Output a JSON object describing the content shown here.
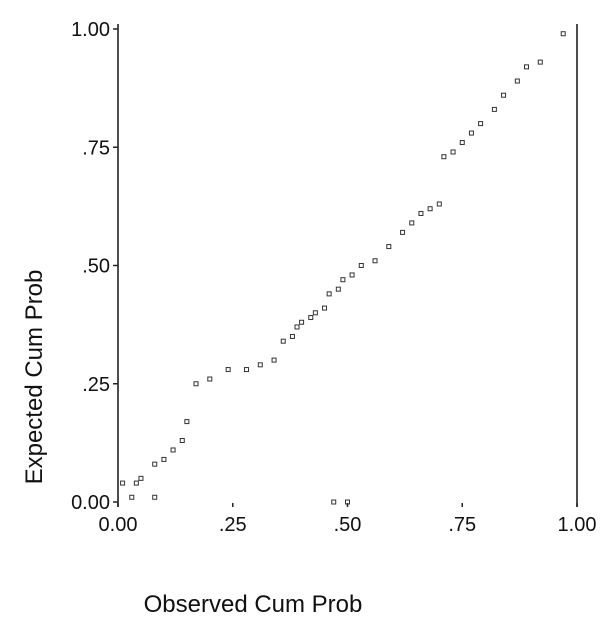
{
  "chart_data": {
    "type": "scatter",
    "title": "",
    "xlabel": "Observed Cum Prob",
    "ylabel": "Expected Cum Prob",
    "xlim": [
      0,
      1
    ],
    "ylim": [
      0,
      1
    ],
    "grid": false,
    "x_ticks": [
      {
        "value": 0,
        "label": "0.00"
      },
      {
        "value": 0.25,
        "label": ".25"
      },
      {
        "value": 0.5,
        "label": ".50"
      },
      {
        "value": 0.75,
        "label": ".75"
      },
      {
        "value": 1,
        "label": "1.00"
      }
    ],
    "y_ticks": [
      {
        "value": 0,
        "label": "0.00"
      },
      {
        "value": 0.25,
        "label": ".25"
      },
      {
        "value": 0.5,
        "label": ".50"
      },
      {
        "value": 0.75,
        "label": ".75"
      },
      {
        "value": 1,
        "label": "1.00"
      }
    ],
    "points": [
      {
        "x": 0.01,
        "y": 0.04
      },
      {
        "x": 0.04,
        "y": 0.04
      },
      {
        "x": 0.03,
        "y": 0.01
      },
      {
        "x": 0.08,
        "y": 0.01
      },
      {
        "x": 0.05,
        "y": 0.05
      },
      {
        "x": 0.08,
        "y": 0.08
      },
      {
        "x": 0.1,
        "y": 0.09
      },
      {
        "x": 0.12,
        "y": 0.11
      },
      {
        "x": 0.14,
        "y": 0.13
      },
      {
        "x": 0.15,
        "y": 0.17
      },
      {
        "x": 0.17,
        "y": 0.25
      },
      {
        "x": 0.2,
        "y": 0.26
      },
      {
        "x": 0.24,
        "y": 0.28
      },
      {
        "x": 0.28,
        "y": 0.28
      },
      {
        "x": 0.31,
        "y": 0.29
      },
      {
        "x": 0.34,
        "y": 0.3
      },
      {
        "x": 0.36,
        "y": 0.34
      },
      {
        "x": 0.38,
        "y": 0.35
      },
      {
        "x": 0.39,
        "y": 0.37
      },
      {
        "x": 0.4,
        "y": 0.38
      },
      {
        "x": 0.42,
        "y": 0.39
      },
      {
        "x": 0.43,
        "y": 0.4
      },
      {
        "x": 0.45,
        "y": 0.41
      },
      {
        "x": 0.46,
        "y": 0.44
      },
      {
        "x": 0.48,
        "y": 0.45
      },
      {
        "x": 0.49,
        "y": 0.47
      },
      {
        "x": 0.51,
        "y": 0.48
      },
      {
        "x": 0.53,
        "y": 0.5
      },
      {
        "x": 0.56,
        "y": 0.51
      },
      {
        "x": 0.59,
        "y": 0.54
      },
      {
        "x": 0.62,
        "y": 0.57
      },
      {
        "x": 0.64,
        "y": 0.59
      },
      {
        "x": 0.66,
        "y": 0.61
      },
      {
        "x": 0.68,
        "y": 0.62
      },
      {
        "x": 0.7,
        "y": 0.63
      },
      {
        "x": 0.71,
        "y": 0.73
      },
      {
        "x": 0.73,
        "y": 0.74
      },
      {
        "x": 0.75,
        "y": 0.76
      },
      {
        "x": 0.77,
        "y": 0.78
      },
      {
        "x": 0.79,
        "y": 0.8
      },
      {
        "x": 0.82,
        "y": 0.83
      },
      {
        "x": 0.84,
        "y": 0.86
      },
      {
        "x": 0.87,
        "y": 0.89
      },
      {
        "x": 0.89,
        "y": 0.92
      },
      {
        "x": 0.92,
        "y": 0.93
      },
      {
        "x": 0.97,
        "y": 0.99
      },
      {
        "x": 0.47,
        "y": 0.0
      },
      {
        "x": 0.5,
        "y": 0.0
      }
    ]
  }
}
